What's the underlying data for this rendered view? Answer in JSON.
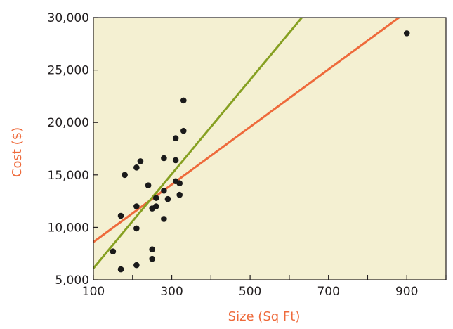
{
  "chart_data": {
    "type": "scatter",
    "title": "",
    "xlabel": "Size (Sq Ft)",
    "ylabel": "Cost ($)",
    "xlim": [
      100,
      1000
    ],
    "ylim": [
      5000,
      30000
    ],
    "x_ticks": [
      100,
      200,
      300,
      400,
      500,
      600,
      700,
      800,
      900,
      1000
    ],
    "x_tick_labels": [
      "100",
      "",
      "300",
      "",
      "500",
      "",
      "700",
      "",
      "900",
      ""
    ],
    "y_ticks": [
      5000,
      10000,
      15000,
      20000,
      25000,
      30000
    ],
    "y_tick_labels": [
      "5,000",
      "10,000",
      "15,000",
      "20,000",
      "25,000",
      "30,000"
    ],
    "grid": false,
    "colors": {
      "plot_background": "#f4f0d2",
      "points": "#1a1a1a",
      "orange_line": "#ee6a3b",
      "green_line": "#86a021",
      "axis_label": "#ee6a3b",
      "tick_text": "#231f20"
    },
    "points": [
      {
        "x": 150,
        "y": 7700
      },
      {
        "x": 170,
        "y": 6000
      },
      {
        "x": 170,
        "y": 11100
      },
      {
        "x": 180,
        "y": 15000
      },
      {
        "x": 210,
        "y": 6400
      },
      {
        "x": 210,
        "y": 9900
      },
      {
        "x": 210,
        "y": 12000
      },
      {
        "x": 210,
        "y": 15700
      },
      {
        "x": 220,
        "y": 16300
      },
      {
        "x": 240,
        "y": 14000
      },
      {
        "x": 250,
        "y": 7000
      },
      {
        "x": 250,
        "y": 7900
      },
      {
        "x": 250,
        "y": 11800
      },
      {
        "x": 260,
        "y": 12000
      },
      {
        "x": 260,
        "y": 12800
      },
      {
        "x": 280,
        "y": 10800
      },
      {
        "x": 280,
        "y": 13500
      },
      {
        "x": 280,
        "y": 16600
      },
      {
        "x": 290,
        "y": 12700
      },
      {
        "x": 310,
        "y": 14400
      },
      {
        "x": 310,
        "y": 16400
      },
      {
        "x": 310,
        "y": 18500
      },
      {
        "x": 320,
        "y": 13100
      },
      {
        "x": 320,
        "y": 14200
      },
      {
        "x": 330,
        "y": 19200
      },
      {
        "x": 330,
        "y": 22100
      },
      {
        "x": 900,
        "y": 28500
      }
    ],
    "lines": [
      {
        "color": "orange",
        "x": [
          100,
          880
        ],
        "y": [
          8600,
          30000
        ]
      },
      {
        "color": "green",
        "x": [
          100,
          632
        ],
        "y": [
          6100,
          30000
        ]
      }
    ]
  }
}
